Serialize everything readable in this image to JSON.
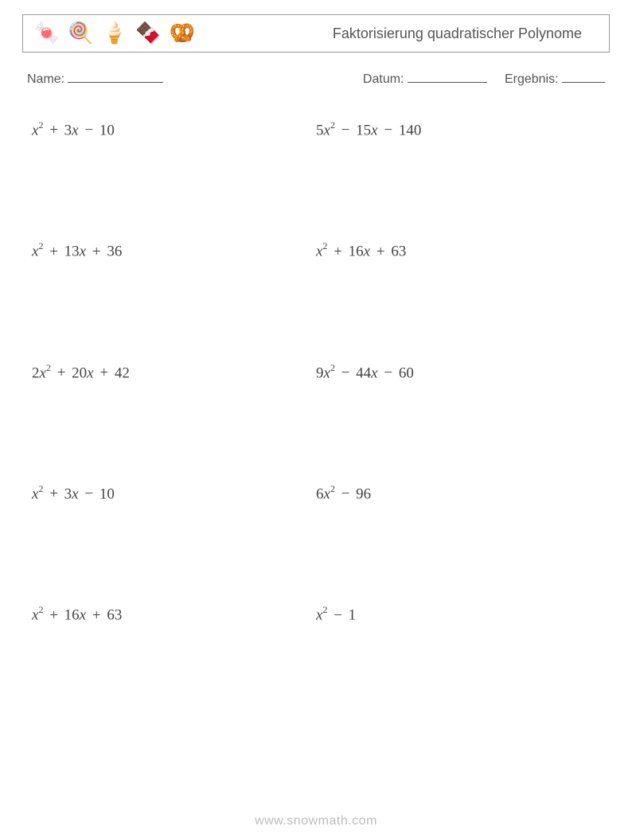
{
  "header": {
    "icons": [
      "🍬",
      "🍭",
      "🍦",
      "🍫",
      "🥨"
    ],
    "title": "Faktorisierung quadratischer Polynome"
  },
  "info": {
    "name_label": "Name:",
    "date_label": "Datum:",
    "result_label": "Ergebnis:"
  },
  "problems": [
    [
      {
        "a": "",
        "b_sign": "+",
        "b": "3",
        "c_sign": "−",
        "c": "10"
      },
      {
        "a": "5",
        "b_sign": "−",
        "b": "15",
        "c_sign": "−",
        "c": "140"
      }
    ],
    [
      {
        "a": "",
        "b_sign": "+",
        "b": "13",
        "c_sign": "+",
        "c": "36"
      },
      {
        "a": "",
        "b_sign": "+",
        "b": "16",
        "c_sign": "+",
        "c": "63"
      }
    ],
    [
      {
        "a": "2",
        "b_sign": "+",
        "b": "20",
        "c_sign": "+",
        "c": "42"
      },
      {
        "a": "9",
        "b_sign": "−",
        "b": "44",
        "c_sign": "−",
        "c": "60"
      }
    ],
    [
      {
        "a": "",
        "b_sign": "+",
        "b": "3",
        "c_sign": "−",
        "c": "10"
      },
      {
        "a": "6",
        "b_sign": "",
        "b": "",
        "c_sign": "−",
        "c": "96"
      }
    ],
    [
      {
        "a": "",
        "b_sign": "+",
        "b": "16",
        "c_sign": "+",
        "c": "63"
      },
      {
        "a": "",
        "b_sign": "",
        "b": "",
        "c_sign": "−",
        "c": "1"
      }
    ]
  ],
  "footer": "www.snowmath.com"
}
